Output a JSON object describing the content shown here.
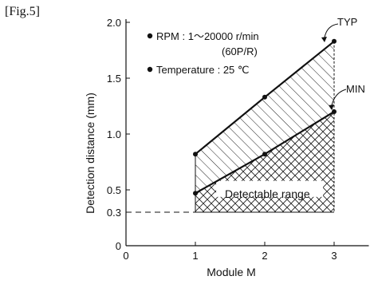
{
  "figure_label": "[Fig.5]",
  "chart_data": {
    "type": "line",
    "xlabel": "Module M",
    "ylabel": "Detection distance (mm)",
    "xlim": [
      0,
      3.5
    ],
    "ylim": [
      0,
      2.05
    ],
    "x_ticks": [
      {
        "value": 0,
        "label": "0"
      },
      {
        "value": 1,
        "label": "1"
      },
      {
        "value": 2,
        "label": "2"
      },
      {
        "value": 3,
        "label": "3"
      }
    ],
    "y_ticks": [
      {
        "value": 0,
        "label": "0"
      },
      {
        "value": 0.3,
        "label": "0.3"
      },
      {
        "value": 0.5,
        "label": "0.5"
      },
      {
        "value": 1.0,
        "label": "1.0"
      },
      {
        "value": 1.5,
        "label": "1.5"
      },
      {
        "value": 2.0,
        "label": "2.0"
      }
    ],
    "series": [
      {
        "name": "TYP",
        "x": [
          1,
          2,
          3
        ],
        "values": [
          0.82,
          1.33,
          1.83
        ]
      },
      {
        "name": "MIN",
        "x": [
          1,
          2,
          3
        ],
        "values": [
          0.47,
          0.82,
          1.2
        ]
      }
    ],
    "min_line": {
      "y": 0.3,
      "x_range": [
        1,
        3
      ]
    },
    "conditions": [
      "RPM : 1〜20000 r/min",
      "(60P/R)",
      "Temperature : 25 ℃"
    ],
    "annotations": {
      "range_label": "Detectable range"
    }
  }
}
